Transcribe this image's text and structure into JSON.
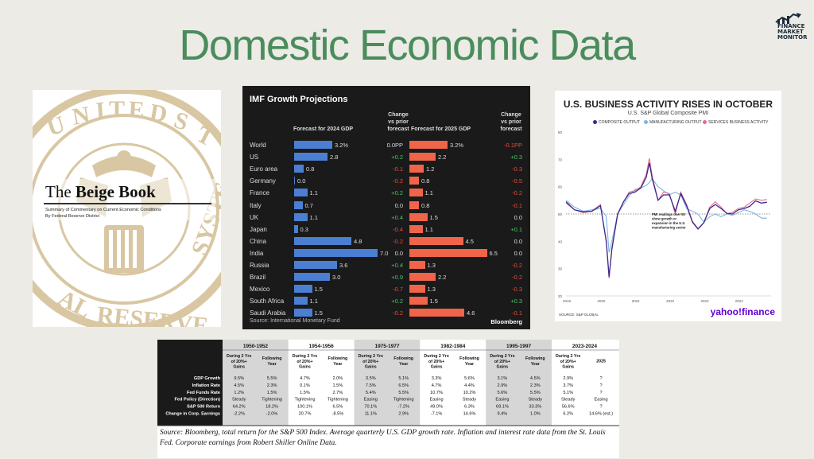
{
  "page": {
    "title": "Domestic Economic Data"
  },
  "brand": {
    "name_lines": [
      "FINANCE",
      "MARKET",
      "MONITOR"
    ]
  },
  "beige_book": {
    "title_pre": "The ",
    "title_bold": "Beige Book",
    "subtitle1": "Summary of Commentary on Current Economic Conditions",
    "subtitle2": "By Federal Reserve District",
    "seal_colors": {
      "tan": "#d8c7a2"
    }
  },
  "imf_chart": {
    "title": "IMF Growth Projections",
    "col_2024": "Forecast for 2024 GDP",
    "col_change": [
      "Change",
      "vs prior",
      "forecast"
    ],
    "col_2025": "Forecast for 2025 GDP",
    "source": "Source: International Monetary Fund",
    "brand": "Bloomberg",
    "colors": {
      "blue": "#4a7fd4",
      "orange": "#f0644a",
      "green": "#4cc36b",
      "red": "#e84b3c",
      "neutral": "#dddddd"
    },
    "rows": [
      {
        "country": "World",
        "g2024": 3.2,
        "l2024": "3.2%",
        "c2024": "0.0PP",
        "g2025": 3.2,
        "l2025": "3.2%",
        "c2025": "-0.1PP"
      },
      {
        "country": "US",
        "g2024": 2.8,
        "l2024": "2.8",
        "c2024": "+0.2",
        "g2025": 2.2,
        "l2025": "2.2",
        "c2025": "+0.3"
      },
      {
        "country": "Euro area",
        "g2024": 0.8,
        "l2024": "0.8",
        "c2024": "-0.1",
        "g2025": 1.2,
        "l2025": "1.2",
        "c2025": "-0.3"
      },
      {
        "country": "Germany",
        "g2024": 0.0,
        "l2024": "0.0",
        "c2024": "-0.2",
        "g2025": 0.8,
        "l2025": "0.8",
        "c2025": "-0.5"
      },
      {
        "country": "France",
        "g2024": 1.1,
        "l2024": "1.1",
        "c2024": "+0.2",
        "g2025": 1.1,
        "l2025": "1.1",
        "c2025": "-0.2"
      },
      {
        "country": "Italy",
        "g2024": 0.7,
        "l2024": "0.7",
        "c2024": "0.0",
        "g2025": 0.8,
        "l2025": "0.8",
        "c2025": "-0.1"
      },
      {
        "country": "UK",
        "g2024": 1.1,
        "l2024": "1.1",
        "c2024": "+0.4",
        "g2025": 1.5,
        "l2025": "1.5",
        "c2025": "0.0"
      },
      {
        "country": "Japan",
        "g2024": 0.3,
        "l2024": "0.3",
        "c2024": "-0.4",
        "g2025": 1.1,
        "l2025": "1.1",
        "c2025": "+0.1"
      },
      {
        "country": "China",
        "g2024": 4.8,
        "l2024": "4.8",
        "c2024": "-0.2",
        "g2025": 4.5,
        "l2025": "4.5",
        "c2025": "0.0"
      },
      {
        "country": "India",
        "g2024": 7.0,
        "l2024": "7.0",
        "c2024": "0.0",
        "g2025": 6.5,
        "l2025": "6.5",
        "c2025": "0.0"
      },
      {
        "country": "Russia",
        "g2024": 3.6,
        "l2024": "3.6",
        "c2024": "+0.4",
        "g2025": 1.3,
        "l2025": "1.3",
        "c2025": "-0.2"
      },
      {
        "country": "Brazil",
        "g2024": 3.0,
        "l2024": "3.0",
        "c2024": "+0.9",
        "g2025": 2.2,
        "l2025": "2.2",
        "c2025": "-0.2"
      },
      {
        "country": "Mexico",
        "g2024": 1.5,
        "l2024": "1.5",
        "c2024": "-0.7",
        "g2025": 1.3,
        "l2025": "1.3",
        "c2025": "-0.3"
      },
      {
        "country": "South Africa",
        "g2024": 1.1,
        "l2024": "1.1",
        "c2024": "+0.2",
        "g2025": 1.5,
        "l2025": "1.5",
        "c2025": "+0.3"
      },
      {
        "country": "Saudi Arabia",
        "g2024": 1.5,
        "l2024": "1.5",
        "c2024": "-0.2",
        "g2025": 4.6,
        "l2025": "4.6",
        "c2025": "-0.1"
      }
    ]
  },
  "pmi_chart": {
    "title": "U.S. BUSINESS ACTIVITY RISES IN OCTOBER",
    "subtitle": "U.S. S&P Global Composite PMI",
    "legend": [
      "COMPOSITE OUTPUT",
      "MANUFACTURING OUTPUT",
      "SERVICES BUSINESS ACTIVITY"
    ],
    "colors": [
      "#3b2a8c",
      "#7fb4e6",
      "#e86a8a"
    ],
    "annotation": [
      "PMI readings over 50",
      "show growth or",
      "expansion in the U.S.",
      "manufacturing sector"
    ],
    "yticks": [
      "80",
      "70",
      "60",
      "50",
      "40",
      "30",
      "20"
    ],
    "xticks": [
      "2019",
      "2020",
      "2021",
      "2022",
      "2023",
      "2024"
    ],
    "source": "SOURCE: S&P GLOBAL",
    "brand": "yahoo!finance"
  },
  "chart_data": [
    {
      "type": "bar",
      "title": "IMF Growth Projections",
      "categories": [
        "World",
        "US",
        "Euro area",
        "Germany",
        "France",
        "Italy",
        "UK",
        "Japan",
        "China",
        "India",
        "Russia",
        "Brazil",
        "Mexico",
        "South Africa",
        "Saudi Arabia"
      ],
      "series": [
        {
          "name": "Forecast for 2024 GDP",
          "values": [
            3.2,
            2.8,
            0.8,
            0.0,
            1.1,
            0.7,
            1.1,
            0.3,
            4.8,
            7.0,
            3.6,
            3.0,
            1.5,
            1.1,
            1.5
          ]
        },
        {
          "name": "Forecast for 2025 GDP",
          "values": [
            3.2,
            2.2,
            1.2,
            0.8,
            1.1,
            0.8,
            1.5,
            1.1,
            4.5,
            6.5,
            1.3,
            2.2,
            1.3,
            1.5,
            4.6
          ]
        }
      ]
    },
    {
      "type": "line",
      "title": "U.S. BUSINESS ACTIVITY RISES IN OCTOBER",
      "ylim": [
        20,
        80
      ],
      "x": [
        2019.0,
        2019.25,
        2019.5,
        2019.75,
        2020.0,
        2020.17,
        2020.25,
        2020.33,
        2020.5,
        2020.67,
        2020.83,
        2021.0,
        2021.17,
        2021.33,
        2021.42,
        2021.5,
        2021.67,
        2021.83,
        2022.0,
        2022.17,
        2022.33,
        2022.5,
        2022.67,
        2022.83,
        2023.0,
        2023.17,
        2023.33,
        2023.5,
        2023.67,
        2023.83,
        2024.0,
        2024.17,
        2024.33,
        2024.5,
        2024.67,
        2024.83
      ],
      "series": [
        {
          "name": "COMPOSITE OUTPUT",
          "values": [
            54.5,
            51.5,
            50.8,
            51.0,
            53.0,
            40.0,
            27.0,
            37.0,
            50.0,
            54.5,
            57.5,
            58.0,
            59.5,
            63.5,
            68.7,
            63.0,
            55.0,
            57.0,
            57.0,
            51.0,
            57.5,
            53.0,
            47.0,
            44.5,
            46.8,
            52.0,
            53.5,
            52.0,
            50.2,
            50.0,
            51.5,
            52.0,
            52.8,
            54.8,
            54.0,
            54.3
          ]
        },
        {
          "name": "MANUFACTURING OUTPUT",
          "values": [
            55.0,
            52.5,
            51.0,
            51.5,
            52.0,
            49.0,
            36.0,
            40.0,
            50.0,
            53.5,
            56.5,
            59.0,
            59.5,
            60.5,
            61.5,
            63.0,
            60.0,
            58.5,
            57.0,
            58.0,
            57.0,
            52.0,
            51.0,
            50.0,
            47.0,
            49.0,
            50.0,
            49.0,
            50.0,
            49.5,
            50.5,
            51.5,
            51.0,
            50.0,
            48.5,
            48.5
          ]
        },
        {
          "name": "SERVICES BUSINESS ACTIVITY",
          "values": [
            54.0,
            51.5,
            50.5,
            51.0,
            53.5,
            39.5,
            26.5,
            37.5,
            50.0,
            54.5,
            58.0,
            58.5,
            60.0,
            64.5,
            70.4,
            64.0,
            55.0,
            58.0,
            57.5,
            50.0,
            58.0,
            53.5,
            47.3,
            44.7,
            46.8,
            52.5,
            54.5,
            52.5,
            50.1,
            50.6,
            52.0,
            52.5,
            54.0,
            55.5,
            55.0,
            55.3
          ]
        }
      ]
    },
    {
      "type": "table",
      "periods": [
        "1950-1952",
        "1954-1956",
        "1975-1977",
        "1982-1984",
        "1995-1997",
        "2023-2024"
      ],
      "subheaders": [
        [
          "During 2 Yrs",
          "of 20%+",
          "Gains"
        ],
        [
          "Following",
          "Year"
        ],
        [
          "During 2 Yrs",
          "of 20%+",
          "Gains"
        ],
        [
          "Following",
          "Year"
        ],
        [
          "During 2 Yrs",
          "of 20%+",
          "Gains"
        ],
        [
          "Following",
          "Year"
        ],
        [
          "During 2 Yrs",
          "of 20%+",
          "Gains"
        ],
        [
          "Following",
          "Year"
        ],
        [
          "During 2 Yrs",
          "of 20%+",
          "Gains"
        ],
        [
          "Following",
          "Year"
        ],
        [
          "During 2 Yrs",
          "of 20%+",
          "Gains"
        ],
        [
          "2025"
        ]
      ],
      "rows": [
        {
          "label": "GDP Growth",
          "cells": [
            "9.5%",
            "5.5%",
            "4.7%",
            "2.0%",
            "3.5%",
            "5.1%",
            "3.3%",
            "5.6%",
            "3.1%",
            "4.5%",
            "2.9%",
            "?"
          ]
        },
        {
          "label": "Inflation Rate",
          "cells": [
            "4.5%",
            "2.3%",
            "0.1%",
            "1.5%",
            "7.5%",
            "6.5%",
            "4.7%",
            "4.4%",
            "2.9%",
            "2.3%",
            "3.7%",
            "?"
          ]
        },
        {
          "label": "Fed Funds Rate",
          "cells": [
            "1.2%",
            "1.5%",
            "1.5%",
            "2.7%",
            "5.4%",
            "5.5%",
            "10.7%",
            "10.2%",
            "5.6%",
            "5.5%",
            "5.1%",
            "?"
          ]
        },
        {
          "label": "Fed Policy (Direction)",
          "cells": [
            "Steady",
            "Tightening",
            "Tightening",
            "Tightening",
            "Easing",
            "Tightening",
            "Easing",
            "Steady",
            "Easing",
            "Steady",
            "Steady",
            "Easing"
          ]
        },
        {
          "label": "S&P 500 Return",
          "cells": [
            "64.2%",
            "18.2%",
            "100.1%",
            "6.5%",
            "70.1%",
            "-7.2%",
            "49.0%",
            "6.3%",
            "69.1%",
            "33.3%",
            "56.6%",
            "?"
          ]
        },
        {
          "label": "Change in Corp. Earnings",
          "cells": [
            "-2.2%",
            "-2.0%",
            "20.7%",
            "-8.5%",
            "11.1%",
            "2.9%",
            "-7.1%",
            "14.6%",
            "9.4%",
            "1.0%",
            "6.2%",
            "14.6% (est.)"
          ]
        }
      ],
      "source": "Source: Bloomberg, total return for the S&P 500 Index. Average quarterly U.S. GDP growth rate. Inflation and interest rate data from the St. Louis Fed. Corporate earnings from Robert Shiller Online Data."
    }
  ]
}
